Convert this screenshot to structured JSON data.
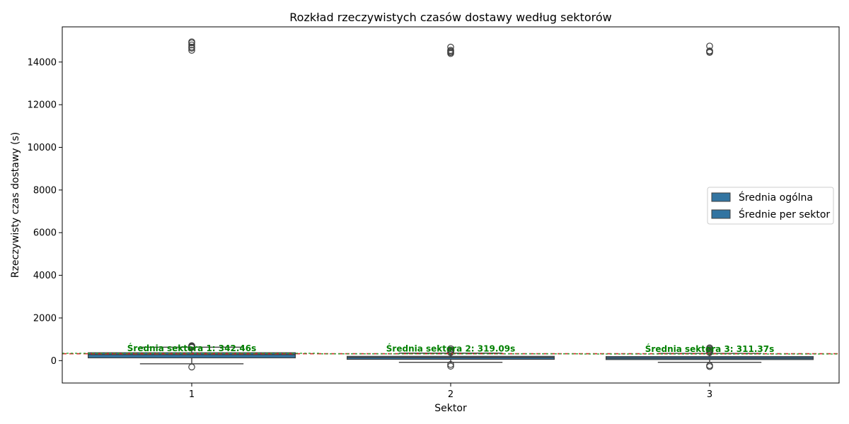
{
  "chart_data": {
    "type": "box",
    "title": "Rozkład rzeczywistych czasów dostawy według sektorów",
    "xlabel": "Sektor",
    "ylabel": "Rzeczywisty czas dostawy (s)",
    "categories": [
      "1",
      "2",
      "3"
    ],
    "ylim": [
      -1050,
      15650
    ],
    "yticks": [
      0,
      2000,
      4000,
      6000,
      8000,
      10000,
      12000,
      14000
    ],
    "grid": false,
    "legend_position": "center-right",
    "legend": [
      "Średnia ogólna",
      "Średnie per sektor"
    ],
    "overall_mean": 324,
    "box_color": "#3274a1",
    "overall_mean_color": "#d62728",
    "sector_mean_color": "#2ca02c",
    "boxes": [
      {
        "sector": "1",
        "whisker_low": -150,
        "q1": 130,
        "median": 280,
        "q3": 370,
        "whisker_high": 630,
        "outliers": [
          -300,
          620,
          650,
          680,
          690,
          700,
          14550,
          14650,
          14700,
          14800,
          14900,
          14950
        ],
        "mean": 342.46,
        "mean_label": "Średnia sektora 1: 342.46s"
      },
      {
        "sector": "2",
        "whisker_low": -80,
        "q1": 60,
        "median": 150,
        "q3": 200,
        "whisker_high": 350,
        "outliers": [
          -180,
          -260,
          380,
          420,
          460,
          500,
          560,
          14400,
          14450,
          14500,
          14550,
          14700
        ],
        "mean": 319.09,
        "mean_label": "Średnia sektora 2: 319.09s"
      },
      {
        "sector": "3",
        "whisker_low": -80,
        "q1": 50,
        "median": 120,
        "q3": 190,
        "whisker_high": 340,
        "outliers": [
          -230,
          -280,
          380,
          420,
          460,
          500,
          550,
          600,
          14450,
          14500,
          14520,
          14750
        ],
        "mean": 311.37,
        "mean_label": "Średnia sektora 3: 311.37s"
      }
    ]
  }
}
